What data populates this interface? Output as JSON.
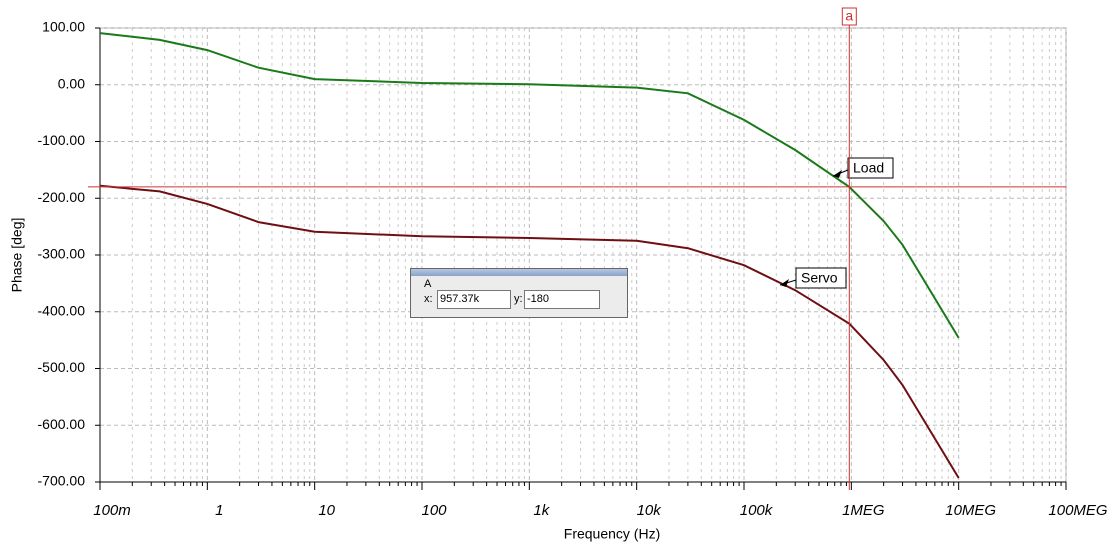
{
  "chart_data": {
    "type": "line",
    "x_label": "Frequency (Hz)",
    "y_label": "Phase [deg]",
    "xscale": "log",
    "grid": true,
    "x": [
      0.1,
      0.36,
      1,
      3,
      10,
      100,
      1000,
      10000,
      30000,
      100000,
      300000,
      957370,
      2000000,
      3000000,
      10000000
    ],
    "series": [
      {
        "name": "Load",
        "color": "#1a7a1a",
        "values": [
          91,
          79,
          61,
          30,
          10,
          3,
          1,
          -5,
          -15,
          -62,
          -115,
          -180,
          -240,
          -282,
          -446
        ]
      },
      {
        "name": "Servo",
        "color": "#6e0f12",
        "values": [
          -178,
          -188,
          -210,
          -242,
          -259,
          -267,
          -270,
          -275,
          -288,
          -318,
          -362,
          -421,
          -485,
          -529,
          -693
        ]
      }
    ],
    "xlim": [
      0.1,
      100000000
    ],
    "xticks": [
      {
        "value": 0.1,
        "label": "100m"
      },
      1,
      10,
      100,
      {
        "value": 1000,
        "label": "1k"
      },
      {
        "value": 10000,
        "label": "10k"
      },
      {
        "value": 100000,
        "label": "100k"
      },
      {
        "value": 1000000,
        "label": "1MEG"
      },
      {
        "value": 10000000,
        "label": "10MEG"
      },
      {
        "value": 100000000,
        "label": "100MEG"
      }
    ],
    "ylim": [
      -700,
      100
    ],
    "yticks": [
      {
        "value": 100,
        "label": "100.00"
      },
      {
        "value": 0,
        "label": "0.00"
      },
      {
        "value": -100,
        "label": "-100.00"
      },
      {
        "value": -200,
        "label": "-200.00"
      },
      {
        "value": -300,
        "label": "-300.00"
      },
      {
        "value": -400,
        "label": "-400.00"
      },
      {
        "value": -500,
        "label": "-500.00"
      },
      {
        "value": -600,
        "label": "-600.00"
      },
      {
        "value": -700,
        "label": "-700.00"
      }
    ],
    "cursor": {
      "name": "a",
      "title": "A",
      "x_caption": "x:",
      "x_value": {
        "value": 957370,
        "label": "957.37k"
      },
      "y_caption": "y:",
      "y_value": -180,
      "color": "#d03030"
    }
  }
}
